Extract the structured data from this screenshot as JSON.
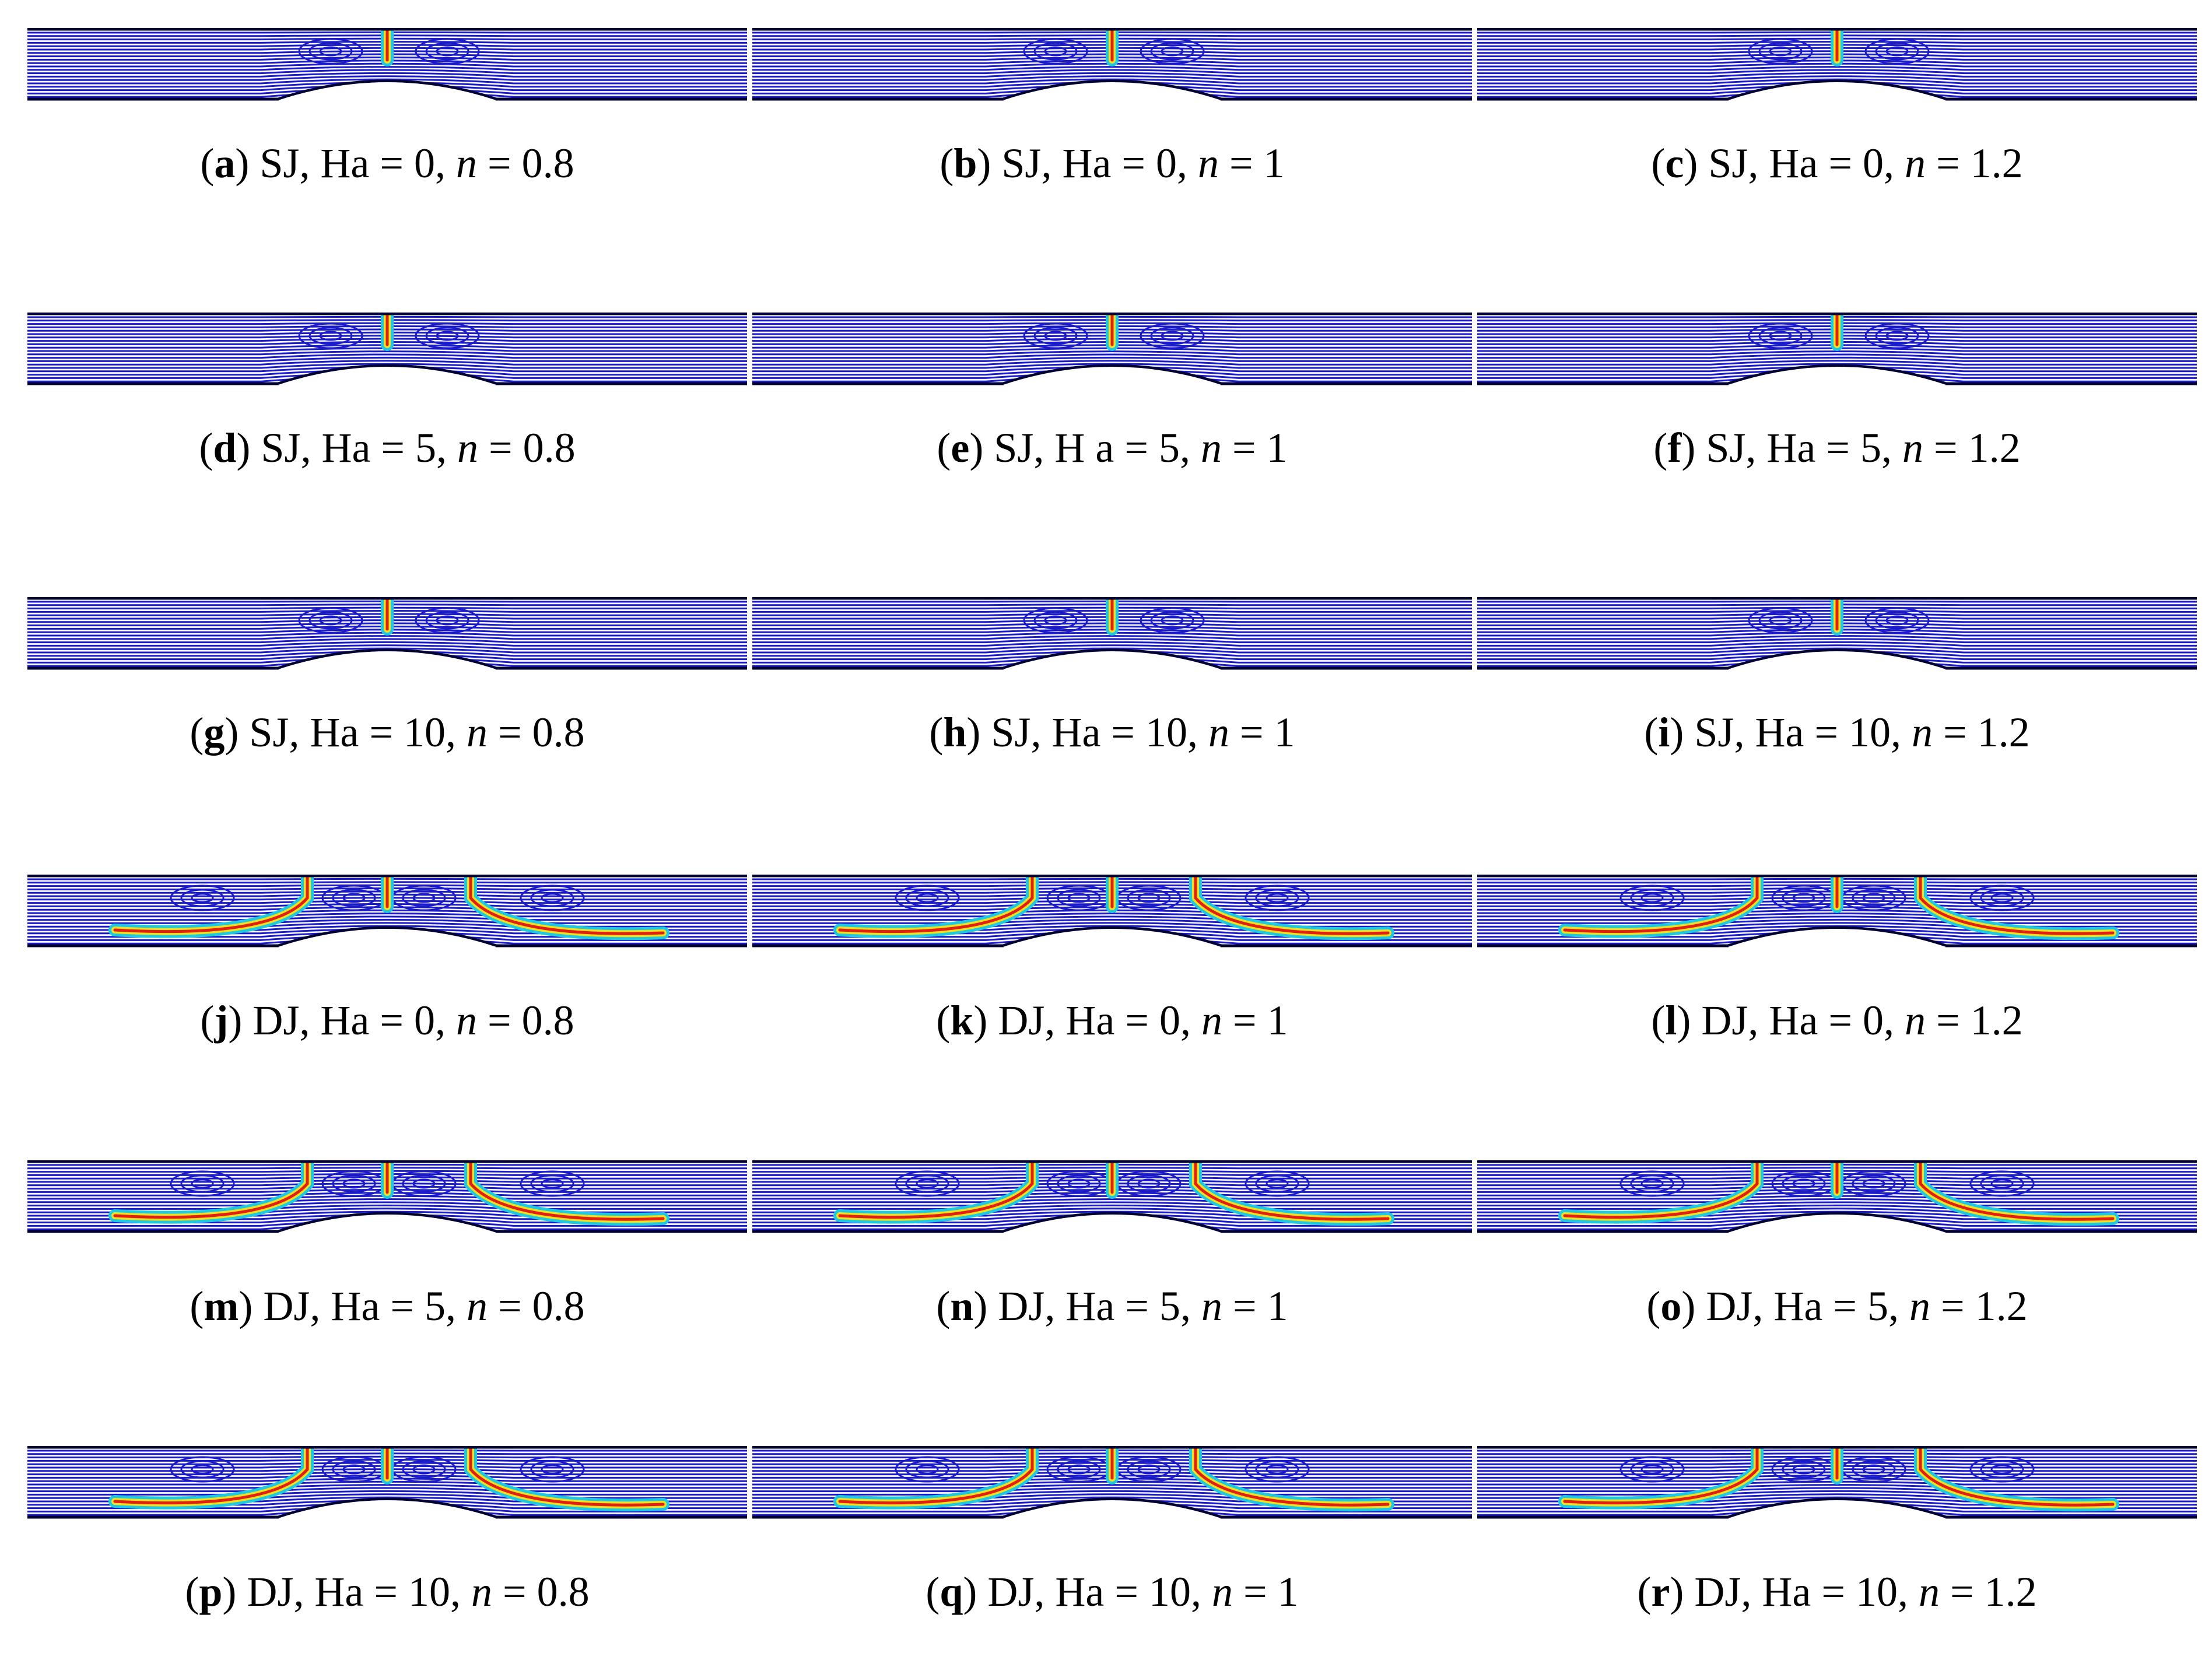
{
  "figure": {
    "panels": [
      {
        "letter": "a",
        "jet": "SJ",
        "ha_label": "Ha",
        "ha": "0",
        "n": "0.8"
      },
      {
        "letter": "b",
        "jet": "SJ",
        "ha_label": "Ha",
        "ha": "0",
        "n": "1"
      },
      {
        "letter": "c",
        "jet": "SJ",
        "ha_label": "Ha",
        "ha": "0",
        "n": "1.2"
      },
      {
        "letter": "d",
        "jet": "SJ",
        "ha_label": "Ha",
        "ha": "5",
        "n": "0.8"
      },
      {
        "letter": "e",
        "jet": "SJ",
        "ha_label": "H a",
        "ha": "5",
        "n": "1"
      },
      {
        "letter": "f",
        "jet": "SJ",
        "ha_label": "Ha",
        "ha": "5",
        "n": "1.2"
      },
      {
        "letter": "g",
        "jet": "SJ",
        "ha_label": "Ha",
        "ha": "10",
        "n": "0.8"
      },
      {
        "letter": "h",
        "jet": "SJ",
        "ha_label": "Ha",
        "ha": "10",
        "n": "1"
      },
      {
        "letter": "i",
        "jet": "SJ",
        "ha_label": "Ha",
        "ha": "10",
        "n": "1.2"
      },
      {
        "letter": "j",
        "jet": "DJ",
        "ha_label": "Ha",
        "ha": "0",
        "n": "0.8"
      },
      {
        "letter": "k",
        "jet": "DJ",
        "ha_label": "Ha",
        "ha": "0",
        "n": "1"
      },
      {
        "letter": "l",
        "jet": "DJ",
        "ha_label": "Ha",
        "ha": "0",
        "n": "1.2"
      },
      {
        "letter": "m",
        "jet": "DJ",
        "ha_label": "Ha",
        "ha": "5",
        "n": "0.8"
      },
      {
        "letter": "n",
        "jet": "DJ",
        "ha_label": "Ha",
        "ha": "5",
        "n": "1"
      },
      {
        "letter": "o",
        "jet": "DJ",
        "ha_label": "Ha",
        "ha": "5",
        "n": "1.2"
      },
      {
        "letter": "p",
        "jet": "DJ",
        "ha_label": "Ha",
        "ha": "10",
        "n": "0.8"
      },
      {
        "letter": "q",
        "jet": "DJ",
        "ha_label": "Ha",
        "ha": "10",
        "n": "1"
      },
      {
        "letter": "r",
        "jet": "DJ",
        "ha_label": "Ha",
        "ha": "10",
        "n": "1.2"
      }
    ],
    "colors": {
      "wall": "#000033",
      "streamline": "#1a1ac8",
      "background": "#5a6fd8",
      "jet_core": "#e02010",
      "jet_mid": "#f0e020",
      "jet_outer": "#20c8e0"
    }
  }
}
